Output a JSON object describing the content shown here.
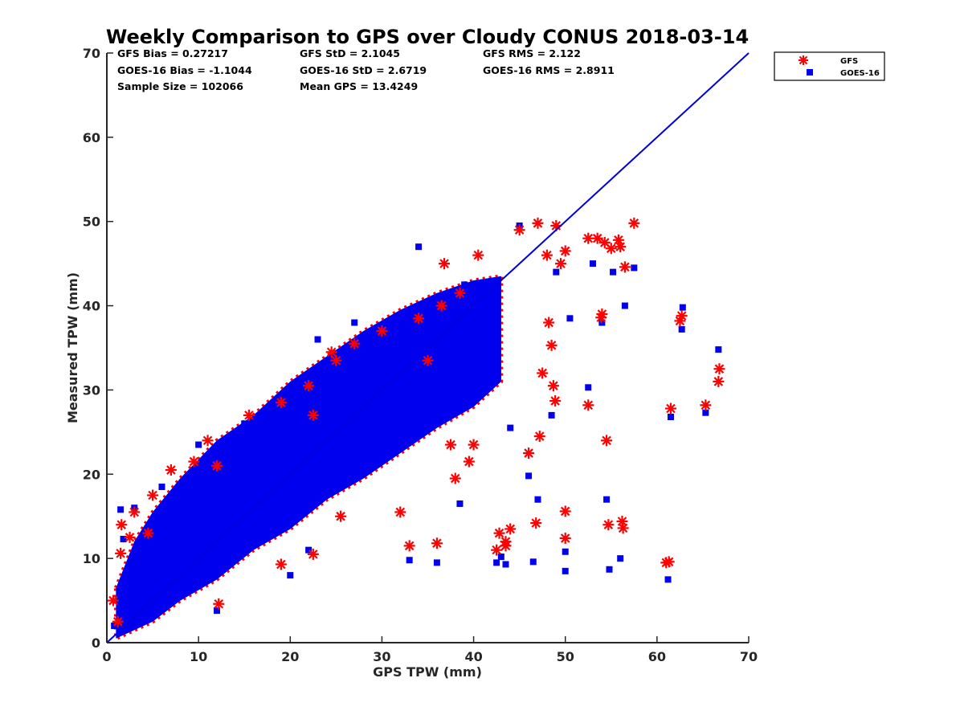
{
  "chart_data": {
    "type": "scatter",
    "title": "Weekly Comparison to GPS over Cloudy CONUS 2018-03-14",
    "xlabel": "GPS TPW (mm)",
    "ylabel": "Measured TPW (mm)",
    "xlim": [
      0,
      70
    ],
    "ylim": [
      0,
      70
    ],
    "x_ticks": [
      "0",
      "10",
      "20",
      "30",
      "40",
      "50",
      "60",
      "70"
    ],
    "y_ticks": [
      "0",
      "10",
      "20",
      "30",
      "40",
      "50",
      "60",
      "70"
    ],
    "grid": false,
    "legend_position": "outside top-right",
    "stats": [
      [
        "GFS Bias = 0.27217",
        "GFS StD = 2.1045",
        "GFS RMS = 2.122"
      ],
      [
        "GOES-16 Bias = -1.1044",
        "GOES-16 StD = 2.6719",
        "GOES-16 RMS = 2.8911"
      ],
      [
        "Sample Size = 102066",
        "Mean GPS = 13.4249",
        ""
      ]
    ],
    "reference_line": {
      "x": [
        0,
        70
      ],
      "y": [
        0,
        70
      ],
      "color": "#0000dd"
    },
    "cloud_band": [
      [
        1,
        0.5,
        6.5
      ],
      [
        3,
        1.5,
        12
      ],
      [
        5,
        2.5,
        15.5
      ],
      [
        8,
        5,
        19.5
      ],
      [
        12,
        7.5,
        24
      ],
      [
        16,
        11,
        27
      ],
      [
        20,
        13.5,
        31
      ],
      [
        24,
        17,
        34
      ],
      [
        28,
        19.5,
        37
      ],
      [
        32,
        22.5,
        39.5
      ],
      [
        36,
        25.5,
        41.5
      ],
      [
        40,
        28,
        43
      ],
      [
        43,
        31,
        43.5
      ]
    ],
    "series": [
      {
        "name": "GFS",
        "marker": "asterisk",
        "color": "#ff0000",
        "points": [
          [
            0.7,
            5.0
          ],
          [
            1.2,
            2.5
          ],
          [
            1.5,
            10.6
          ],
          [
            1.6,
            14.0
          ],
          [
            2.5,
            12.5
          ],
          [
            3.0,
            15.5
          ],
          [
            4.5,
            13.0
          ],
          [
            5.0,
            17.5
          ],
          [
            7.0,
            20.5
          ],
          [
            9.5,
            21.5
          ],
          [
            11.0,
            24.0
          ],
          [
            12.0,
            21.0
          ],
          [
            12.2,
            4.6
          ],
          [
            15.5,
            27.0
          ],
          [
            19.0,
            28.5
          ],
          [
            19.0,
            9.3
          ],
          [
            22.0,
            30.5
          ],
          [
            22.5,
            10.5
          ],
          [
            22.5,
            27.0
          ],
          [
            24.5,
            34.5
          ],
          [
            25.0,
            33.5
          ],
          [
            25.5,
            15.0
          ],
          [
            27.0,
            35.5
          ],
          [
            30.0,
            37.0
          ],
          [
            32.0,
            15.5
          ],
          [
            33.0,
            11.5
          ],
          [
            34.0,
            38.5
          ],
          [
            35.0,
            33.5
          ],
          [
            36.0,
            11.8
          ],
          [
            36.5,
            40.0
          ],
          [
            36.8,
            45.0
          ],
          [
            37.5,
            23.5
          ],
          [
            38.0,
            19.5
          ],
          [
            38.5,
            41.5
          ],
          [
            39.5,
            21.5
          ],
          [
            40.0,
            23.5
          ],
          [
            40.5,
            46.0
          ],
          [
            42.5,
            11.0
          ],
          [
            42.8,
            13.0
          ],
          [
            43.5,
            12.0
          ],
          [
            43.5,
            11.5
          ],
          [
            44.0,
            13.5
          ],
          [
            45.0,
            49.0
          ],
          [
            46.0,
            22.5
          ],
          [
            46.8,
            14.2
          ],
          [
            47.0,
            49.8
          ],
          [
            47.2,
            24.5
          ],
          [
            47.5,
            32.0
          ],
          [
            48.0,
            46.0
          ],
          [
            48.2,
            38.0
          ],
          [
            48.5,
            35.3
          ],
          [
            48.7,
            30.5
          ],
          [
            48.9,
            28.7
          ],
          [
            49.0,
            49.5
          ],
          [
            49.5,
            45.0
          ],
          [
            50.0,
            15.6
          ],
          [
            50.0,
            12.4
          ],
          [
            50.0,
            46.5
          ],
          [
            52.5,
            48.0
          ],
          [
            52.5,
            28.2
          ],
          [
            53.5,
            48.0
          ],
          [
            53.9,
            38.6
          ],
          [
            54.0,
            39.0
          ],
          [
            54.3,
            47.5
          ],
          [
            54.5,
            24.0
          ],
          [
            54.7,
            14.0
          ],
          [
            55.0,
            46.8
          ],
          [
            55.8,
            47.8
          ],
          [
            56.0,
            47.0
          ],
          [
            56.2,
            14.4
          ],
          [
            56.3,
            13.6
          ],
          [
            56.5,
            44.6
          ],
          [
            57.5,
            49.8
          ],
          [
            61.0,
            9.5
          ],
          [
            61.3,
            9.6
          ],
          [
            61.5,
            27.8
          ],
          [
            62.5,
            38.2
          ],
          [
            62.7,
            38.8
          ],
          [
            65.3,
            28.2
          ],
          [
            66.7,
            31.0
          ],
          [
            66.8,
            32.5
          ]
        ]
      },
      {
        "name": "GOES-16",
        "marker": "square",
        "color": "#0000ee",
        "points": [
          [
            0.8,
            2.0
          ],
          [
            1.5,
            15.8
          ],
          [
            1.8,
            12.3
          ],
          [
            2.5,
            9.0
          ],
          [
            3.0,
            16.0
          ],
          [
            4.0,
            7.5
          ],
          [
            6.0,
            18.5
          ],
          [
            10.0,
            23.5
          ],
          [
            12.0,
            3.8
          ],
          [
            15.0,
            26.0
          ],
          [
            20.0,
            29.0
          ],
          [
            20.0,
            8.0
          ],
          [
            22.0,
            11.0
          ],
          [
            23.0,
            36.0
          ],
          [
            27.0,
            38.0
          ],
          [
            31.5,
            38.5
          ],
          [
            33.0,
            9.8
          ],
          [
            34.0,
            47.0
          ],
          [
            36.0,
            9.5
          ],
          [
            38.5,
            16.5
          ],
          [
            39.0,
            42.5
          ],
          [
            42.5,
            9.5
          ],
          [
            43.0,
            10.2
          ],
          [
            43.5,
            9.3
          ],
          [
            44.0,
            25.5
          ],
          [
            45.0,
            49.5
          ],
          [
            46.0,
            19.8
          ],
          [
            46.5,
            9.6
          ],
          [
            47.0,
            17.0
          ],
          [
            48.5,
            27.0
          ],
          [
            49.0,
            44.0
          ],
          [
            50.0,
            10.8
          ],
          [
            50.0,
            8.5
          ],
          [
            50.5,
            38.5
          ],
          [
            52.5,
            30.3
          ],
          [
            53.0,
            45.0
          ],
          [
            54.0,
            38.0
          ],
          [
            54.5,
            17.0
          ],
          [
            54.8,
            8.7
          ],
          [
            55.2,
            44.0
          ],
          [
            56.0,
            10.0
          ],
          [
            56.5,
            40.0
          ],
          [
            57.5,
            44.5
          ],
          [
            61.2,
            7.5
          ],
          [
            61.5,
            26.8
          ],
          [
            62.7,
            37.2
          ],
          [
            62.8,
            39.8
          ],
          [
            65.3,
            27.3
          ],
          [
            66.7,
            34.8
          ]
        ]
      }
    ]
  }
}
